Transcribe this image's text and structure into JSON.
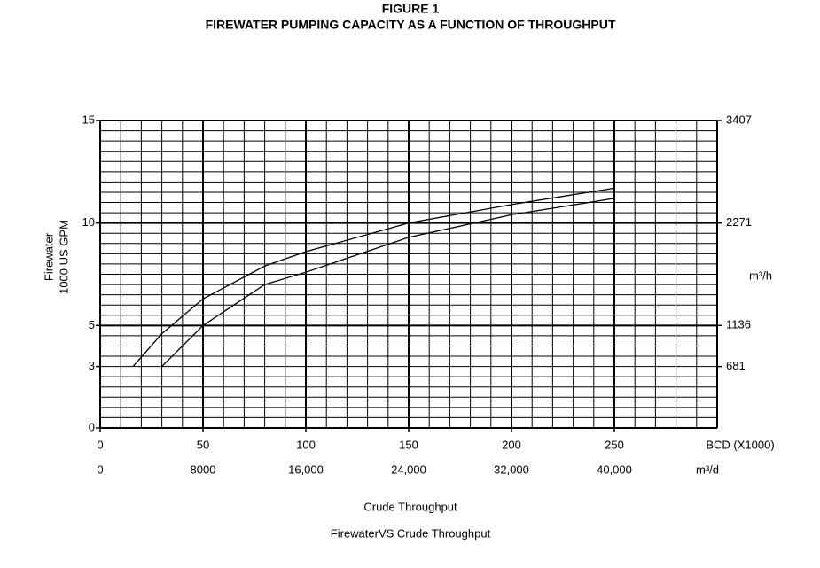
{
  "chart_data": {
    "type": "line",
    "title": "FIGURE 1",
    "subtitle": "FIREWATER PUMPING CAPACITY AS A FUNCTION OF THROUGHPUT",
    "xlabel": "Crude Throughput",
    "caption": "FirewaterVS Crude Throughput",
    "xunit": "BCD (X1000)",
    "x2label": "m³/d",
    "ylabel": [
      "Firewater",
      "1000 US GPM"
    ],
    "y2label": "m³/h",
    "xlim": [
      0,
      300
    ],
    "xticks": [
      0,
      50,
      100,
      150,
      200,
      250
    ],
    "x2lim": [
      0,
      48000
    ],
    "x2ticks": [
      0,
      8000,
      {
        "value": 16000,
        "label": "16,000"
      },
      {
        "value": 24000,
        "label": "24,000"
      },
      {
        "value": 32000,
        "label": "32,000"
      },
      {
        "value": 40000,
        "label": "40,000"
      }
    ],
    "ylim": [
      0,
      15
    ],
    "yticks": [
      0,
      3,
      5,
      10,
      15
    ],
    "y2lim": [
      0,
      3407
    ],
    "y2ticks": [
      681,
      1136,
      2271,
      3407
    ],
    "grid": true,
    "minor_grid_step": {
      "x": 10,
      "y": 0.5
    },
    "major_grid_step": {
      "x": 50,
      "y": 5
    },
    "series": [
      {
        "color": "#000000",
        "x": [
          16,
          30,
          50,
          80,
          100,
          150,
          200,
          250
        ],
        "values": [
          3,
          4.6,
          6.3,
          7.9,
          8.6,
          10.0,
          10.9,
          11.7
        ]
      },
      {
        "color": "#000000",
        "x": [
          30,
          40,
          50,
          80,
          100,
          150,
          200,
          250
        ],
        "values": [
          3,
          4.0,
          5.0,
          7.0,
          7.6,
          9.3,
          10.4,
          11.2
        ]
      }
    ]
  }
}
